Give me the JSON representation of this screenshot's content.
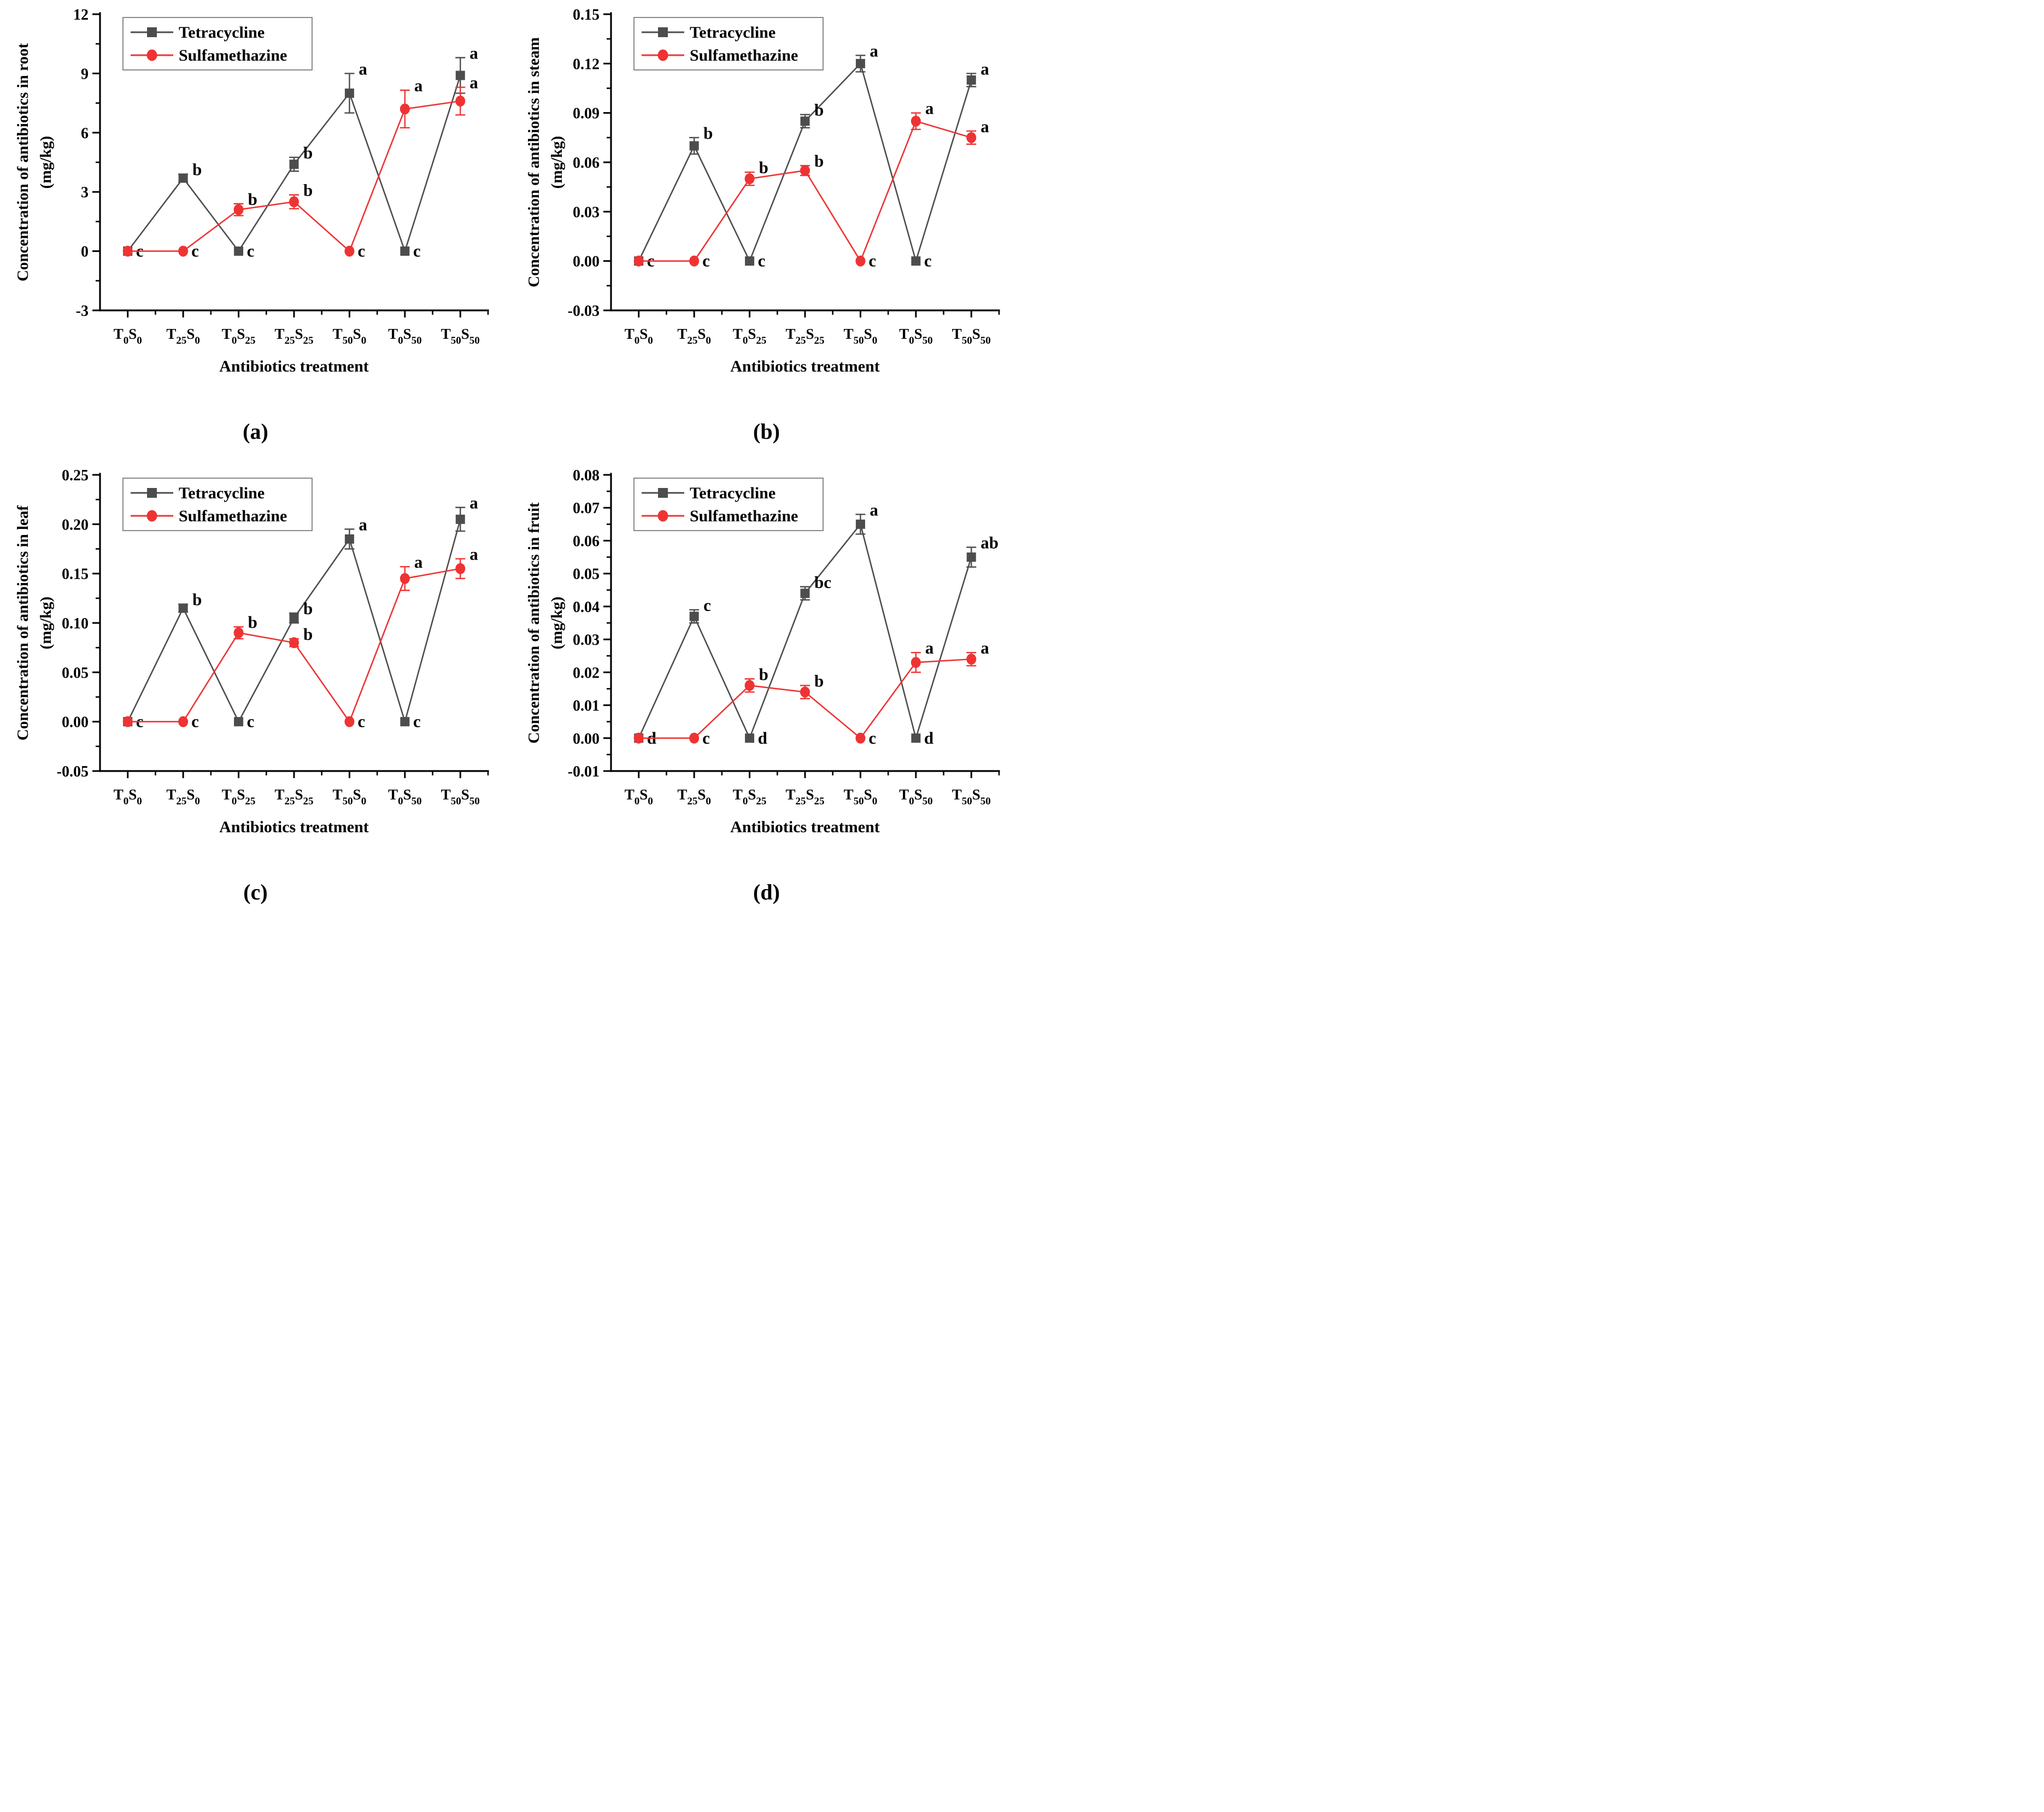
{
  "figure": {
    "xlabel": "Antibiotics treatment",
    "legend_entries": [
      "Tetracycline",
      "Sulfamethazine"
    ],
    "colors": {
      "tetracycline": "#4d4d4d",
      "sulfamethazine": "#ee3333",
      "axis": "#000000",
      "background": "#ffffff"
    },
    "categories_display": [
      "T0S0",
      "T25S0",
      "T0S25",
      "T25S25",
      "T50S0",
      "T0S50",
      "T50S50"
    ]
  },
  "chart_data": [
    {
      "type": "line",
      "id": "a",
      "caption": "(a)",
      "ylabel": "Concentration of antibiotics in root",
      "ylabel_units": "(mg/kg)",
      "xlabel": "Antibiotics treatment",
      "categories": [
        "T0S0",
        "T25S0",
        "T0S25",
        "T25S25",
        "T50S0",
        "T0S50",
        "T50S50"
      ],
      "ylim": [
        -3,
        12
      ],
      "yticks": [
        {
          "v": 12,
          "t": "12"
        },
        {
          "v": 9,
          "t": "9"
        },
        {
          "v": 6,
          "t": "6"
        },
        {
          "v": 3,
          "t": "3"
        },
        {
          "v": 0,
          "t": "0"
        },
        {
          "v": -3,
          "t": "-3"
        }
      ],
      "grid": false,
      "legend_position": "top-left",
      "series": [
        {
          "name": "Tetracycline",
          "marker": "square",
          "color": "#4d4d4d",
          "values": [
            0,
            3.7,
            0,
            4.4,
            8.0,
            0,
            8.9
          ],
          "errors": [
            0,
            0.2,
            0,
            0.35,
            1.0,
            0,
            0.9
          ],
          "point_labels": [
            "c",
            "b",
            "c",
            "b",
            "a",
            "c",
            "a"
          ]
        },
        {
          "name": "Sulfamethazine",
          "marker": "circle",
          "color": "#ee3333",
          "values": [
            0,
            0,
            2.1,
            2.5,
            0,
            7.2,
            7.6
          ],
          "errors": [
            0,
            0,
            0.3,
            0.35,
            0,
            0.95,
            0.7
          ],
          "point_labels": [
            "",
            "c",
            "b",
            "b",
            "c",
            "a",
            "a"
          ]
        }
      ]
    },
    {
      "type": "line",
      "id": "b",
      "caption": "(b)",
      "ylabel": "Concentration of antibiotics in steam",
      "ylabel_units": "(mg/kg)",
      "xlabel": "Antibiotics treatment",
      "categories": [
        "T0S0",
        "T25S0",
        "T0S25",
        "T25S25",
        "T50S0",
        "T0S50",
        "T50S50"
      ],
      "ylim": [
        -0.03,
        0.15
      ],
      "yticks": [
        {
          "v": 0.15,
          "t": "0.15"
        },
        {
          "v": 0.12,
          "t": "0.12"
        },
        {
          "v": 0.09,
          "t": "0.09"
        },
        {
          "v": 0.06,
          "t": "0.06"
        },
        {
          "v": 0.03,
          "t": "0.03"
        },
        {
          "v": 0.0,
          "t": "0.00"
        },
        {
          "v": -0.03,
          "t": "-0.03"
        }
      ],
      "grid": false,
      "legend_position": "top-left",
      "series": [
        {
          "name": "Tetracycline",
          "marker": "square",
          "color": "#4d4d4d",
          "values": [
            0,
            0.07,
            0,
            0.085,
            0.12,
            0,
            0.11
          ],
          "errors": [
            0,
            0.005,
            0,
            0.004,
            0.005,
            0,
            0.004
          ],
          "point_labels": [
            "c",
            "b",
            "c",
            "b",
            "a",
            "c",
            "a"
          ]
        },
        {
          "name": "Sulfamethazine",
          "marker": "circle",
          "color": "#ee3333",
          "values": [
            0,
            0,
            0.05,
            0.055,
            0,
            0.085,
            0.075
          ],
          "errors": [
            0,
            0,
            0.004,
            0.003,
            0,
            0.005,
            0.004
          ],
          "point_labels": [
            "",
            "c",
            "b",
            "b",
            "c",
            "a",
            "a"
          ]
        }
      ]
    },
    {
      "type": "line",
      "id": "c",
      "caption": "(c)",
      "ylabel": "Concentration of antibiotics in leaf",
      "ylabel_units": "(mg/kg)",
      "xlabel": "Antibiotics treatment",
      "categories": [
        "T0S0",
        "T25S0",
        "T0S25",
        "T25S25",
        "T50S0",
        "T0S50",
        "T50S50"
      ],
      "ylim": [
        -0.05,
        0.25
      ],
      "yticks": [
        {
          "v": 0.25,
          "t": "0.25"
        },
        {
          "v": 0.2,
          "t": "0.20"
        },
        {
          "v": 0.15,
          "t": "0.15"
        },
        {
          "v": 0.1,
          "t": "0.10"
        },
        {
          "v": 0.05,
          "t": "0.05"
        },
        {
          "v": 0.0,
          "t": "0.00"
        },
        {
          "v": -0.05,
          "t": "-0.05"
        }
      ],
      "grid": false,
      "legend_position": "top-left",
      "series": [
        {
          "name": "Tetracycline",
          "marker": "square",
          "color": "#4d4d4d",
          "values": [
            0,
            0.115,
            0,
            0.105,
            0.185,
            0,
            0.205
          ],
          "errors": [
            0,
            0.004,
            0,
            0.005,
            0.01,
            0,
            0.012
          ],
          "point_labels": [
            "c",
            "b",
            "c",
            "b",
            "a",
            "c",
            "a"
          ]
        },
        {
          "name": "Sulfamethazine",
          "marker": "circle",
          "color": "#ee3333",
          "values": [
            0,
            0,
            0.09,
            0.08,
            0,
            0.145,
            0.155
          ],
          "errors": [
            0,
            0,
            0.006,
            0.004,
            0,
            0.012,
            0.01
          ],
          "point_labels": [
            "",
            "c",
            "b",
            "b",
            "c",
            "a",
            "a"
          ]
        }
      ]
    },
    {
      "type": "line",
      "id": "d",
      "caption": "(d)",
      "ylabel": "Concentration of antibiotics in fruit",
      "ylabel_units": "(mg/kg)",
      "xlabel": "Antibiotics treatment",
      "categories": [
        "T0S0",
        "T25S0",
        "T0S25",
        "T25S25",
        "T50S0",
        "T0S50",
        "T50S50"
      ],
      "ylim": [
        -0.01,
        0.08
      ],
      "yticks": [
        {
          "v": 0.08,
          "t": "0.08"
        },
        {
          "v": 0.07,
          "t": "0.07"
        },
        {
          "v": 0.06,
          "t": "0.06"
        },
        {
          "v": 0.05,
          "t": "0.05"
        },
        {
          "v": 0.04,
          "t": "0.04"
        },
        {
          "v": 0.03,
          "t": "0.03"
        },
        {
          "v": 0.02,
          "t": "0.02"
        },
        {
          "v": 0.01,
          "t": "0.01"
        },
        {
          "v": 0.0,
          "t": "0.00"
        },
        {
          "v": -0.01,
          "t": "-0.01"
        }
      ],
      "grid": false,
      "legend_position": "top-left",
      "series": [
        {
          "name": "Tetracycline",
          "marker": "square",
          "color": "#4d4d4d",
          "values": [
            0,
            0.037,
            0,
            0.044,
            0.065,
            0,
            0.055
          ],
          "errors": [
            0,
            0.002,
            0,
            0.002,
            0.003,
            0,
            0.003
          ],
          "point_labels": [
            "d",
            "c",
            "d",
            "bc",
            "a",
            "d",
            "ab"
          ]
        },
        {
          "name": "Sulfamethazine",
          "marker": "circle",
          "color": "#ee3333",
          "values": [
            0,
            0,
            0.016,
            0.014,
            0,
            0.023,
            0.024
          ],
          "errors": [
            0,
            0,
            0.002,
            0.002,
            0,
            0.003,
            0.002
          ],
          "point_labels": [
            "",
            "c",
            "b",
            "b",
            "c",
            "a",
            "a"
          ]
        }
      ]
    }
  ]
}
